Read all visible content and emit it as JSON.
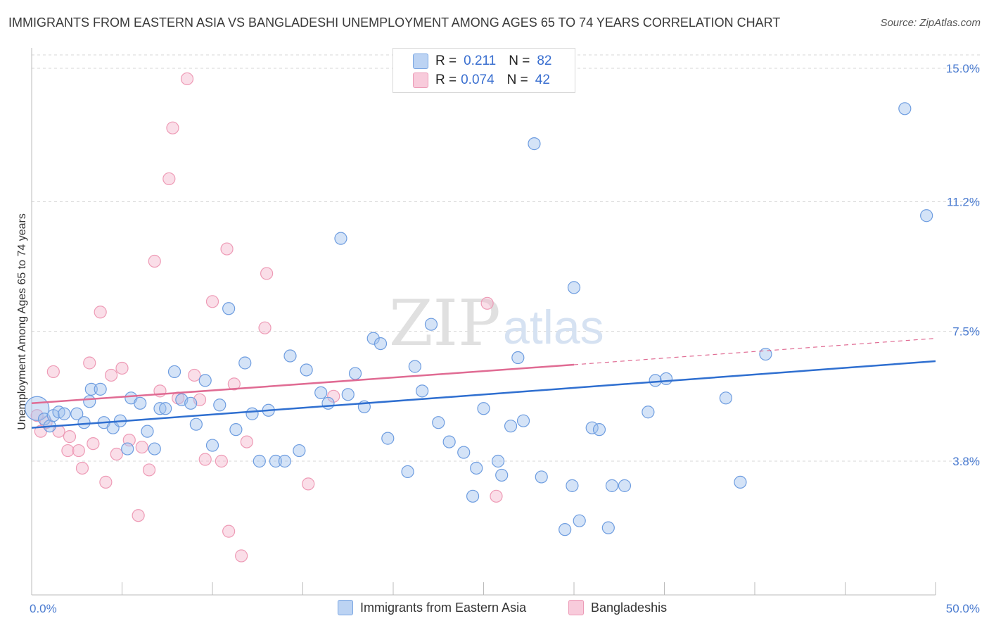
{
  "title": "IMMIGRANTS FROM EASTERN ASIA VS BANGLADESHI UNEMPLOYMENT AMONG AGES 65 TO 74 YEARS CORRELATION CHART",
  "source": "Source: ZipAtlas.com",
  "watermark": {
    "zip": "ZIP",
    "atlas": "atlas"
  },
  "legend": {
    "rows": [
      {
        "r_label": "R =",
        "r_value": "0.211",
        "n_label": "N =",
        "n_value": "82"
      },
      {
        "r_label": "R =",
        "r_value": "0.074",
        "n_label": "N =",
        "n_value": "42"
      }
    ]
  },
  "chart_data": {
    "type": "scatter",
    "title": "IMMIGRANTS FROM EASTERN ASIA VS BANGLADESHI UNEMPLOYMENT AMONG AGES 65 TO 74 YEARS CORRELATION CHART",
    "xlabel": "",
    "ylabel": "Unemployment Among Ages 65 to 74 years",
    "xlim": [
      0,
      50
    ],
    "ylim": [
      0,
      15.5
    ],
    "x_tick_labels": [
      "0.0%",
      "50.0%"
    ],
    "y_ticks": [
      3.8,
      7.5,
      11.2,
      15.0
    ],
    "y_tick_labels": [
      "3.8%",
      "7.5%",
      "11.2%",
      "15.0%"
    ],
    "grid": true,
    "legend_placement": "top-center",
    "colors": {
      "Immigrants from Eastern Asia": "#6e9de0",
      "Bangladeshis": "#ee9bb6",
      "blue_line": "#2f6fd0",
      "pink_line": "#e06b93"
    },
    "series": [
      {
        "name": "Immigrants from Eastern Asia",
        "r": 0.211,
        "n": 82,
        "trend": {
          "x": [
            0,
            50
          ],
          "y": [
            4.75,
            6.65
          ]
        },
        "points": [
          [
            0.3,
            5.3
          ],
          [
            0.7,
            5.0
          ],
          [
            1.0,
            4.8
          ],
          [
            1.2,
            5.1
          ],
          [
            1.5,
            5.2
          ],
          [
            1.8,
            5.15
          ],
          [
            2.5,
            5.15
          ],
          [
            2.9,
            4.9
          ],
          [
            3.2,
            5.5
          ],
          [
            3.3,
            5.85
          ],
          [
            3.8,
            5.85
          ],
          [
            4.0,
            4.9
          ],
          [
            4.5,
            4.75
          ],
          [
            4.9,
            4.95
          ],
          [
            5.3,
            4.15
          ],
          [
            5.5,
            5.6
          ],
          [
            6.0,
            5.45
          ],
          [
            6.4,
            4.65
          ],
          [
            6.8,
            4.15
          ],
          [
            7.1,
            5.3
          ],
          [
            7.4,
            5.3
          ],
          [
            7.9,
            6.35
          ],
          [
            8.3,
            5.55
          ],
          [
            8.8,
            5.45
          ],
          [
            9.1,
            4.85
          ],
          [
            9.6,
            6.1
          ],
          [
            10.0,
            4.25
          ],
          [
            10.4,
            5.4
          ],
          [
            10.9,
            8.15
          ],
          [
            11.3,
            4.7
          ],
          [
            11.8,
            6.6
          ],
          [
            12.2,
            5.15
          ],
          [
            12.6,
            3.8
          ],
          [
            13.1,
            5.25
          ],
          [
            13.5,
            3.8
          ],
          [
            14.0,
            3.8
          ],
          [
            14.3,
            6.8
          ],
          [
            14.8,
            4.1
          ],
          [
            15.2,
            6.4
          ],
          [
            16.0,
            5.75
          ],
          [
            16.4,
            5.45
          ],
          [
            17.1,
            10.15
          ],
          [
            17.5,
            5.7
          ],
          [
            17.9,
            6.3
          ],
          [
            18.4,
            5.35
          ],
          [
            18.9,
            7.3
          ],
          [
            19.3,
            7.15
          ],
          [
            19.7,
            4.45
          ],
          [
            20.8,
            3.5
          ],
          [
            21.2,
            6.5
          ],
          [
            21.6,
            5.8
          ],
          [
            22.1,
            7.7
          ],
          [
            22.5,
            4.9
          ],
          [
            23.1,
            4.35
          ],
          [
            23.9,
            4.05
          ],
          [
            24.4,
            2.8
          ],
          [
            24.6,
            3.6
          ],
          [
            25.0,
            5.3
          ],
          [
            25.8,
            3.8
          ],
          [
            26.0,
            3.4
          ],
          [
            26.5,
            4.8
          ],
          [
            26.9,
            6.75
          ],
          [
            27.2,
            4.95
          ],
          [
            27.8,
            12.85
          ],
          [
            28.2,
            3.35
          ],
          [
            29.5,
            1.85
          ],
          [
            29.9,
            3.1
          ],
          [
            30.0,
            8.75
          ],
          [
            30.3,
            2.1
          ],
          [
            31.0,
            4.75
          ],
          [
            31.4,
            4.7
          ],
          [
            31.9,
            1.9
          ],
          [
            32.1,
            3.1
          ],
          [
            32.8,
            3.1
          ],
          [
            34.1,
            5.2
          ],
          [
            34.5,
            6.1
          ],
          [
            35.1,
            6.15
          ],
          [
            38.4,
            5.6
          ],
          [
            39.2,
            3.2
          ],
          [
            40.6,
            6.85
          ],
          [
            48.3,
            13.85
          ],
          [
            49.5,
            10.8
          ]
        ]
      },
      {
        "name": "Bangladeshis",
        "r": 0.074,
        "n": 42,
        "trend": {
          "x": [
            0,
            30
          ],
          "y": [
            5.45,
            6.55
          ]
        },
        "trend_dashed": {
          "x": [
            30,
            50
          ],
          "y": [
            6.55,
            7.3
          ]
        },
        "points": [
          [
            0.3,
            5.1
          ],
          [
            0.5,
            4.65
          ],
          [
            0.8,
            4.9
          ],
          [
            1.2,
            6.35
          ],
          [
            1.5,
            4.65
          ],
          [
            2.0,
            4.1
          ],
          [
            2.1,
            4.5
          ],
          [
            2.6,
            4.1
          ],
          [
            2.8,
            3.6
          ],
          [
            3.2,
            6.6
          ],
          [
            3.4,
            4.3
          ],
          [
            3.8,
            8.05
          ],
          [
            4.1,
            3.2
          ],
          [
            4.4,
            6.25
          ],
          [
            4.7,
            4.0
          ],
          [
            5.0,
            6.45
          ],
          [
            5.4,
            4.4
          ],
          [
            5.9,
            2.25
          ],
          [
            6.1,
            4.2
          ],
          [
            6.5,
            3.55
          ],
          [
            6.8,
            9.5
          ],
          [
            7.1,
            5.8
          ],
          [
            7.6,
            11.85
          ],
          [
            7.8,
            13.3
          ],
          [
            8.1,
            5.6
          ],
          [
            8.6,
            14.7
          ],
          [
            9.0,
            6.25
          ],
          [
            9.3,
            5.55
          ],
          [
            9.6,
            3.85
          ],
          [
            10.0,
            8.35
          ],
          [
            10.5,
            3.8
          ],
          [
            10.8,
            9.85
          ],
          [
            10.9,
            1.8
          ],
          [
            11.2,
            6.0
          ],
          [
            11.6,
            1.1
          ],
          [
            11.9,
            4.35
          ],
          [
            12.9,
            7.6
          ],
          [
            13.0,
            9.15
          ],
          [
            15.3,
            3.15
          ],
          [
            16.7,
            5.65
          ],
          [
            25.2,
            8.3
          ],
          [
            25.7,
            2.8
          ]
        ]
      }
    ]
  },
  "bottom_legend": [
    "Immigrants from Eastern Asia",
    "Bangladeshis"
  ]
}
